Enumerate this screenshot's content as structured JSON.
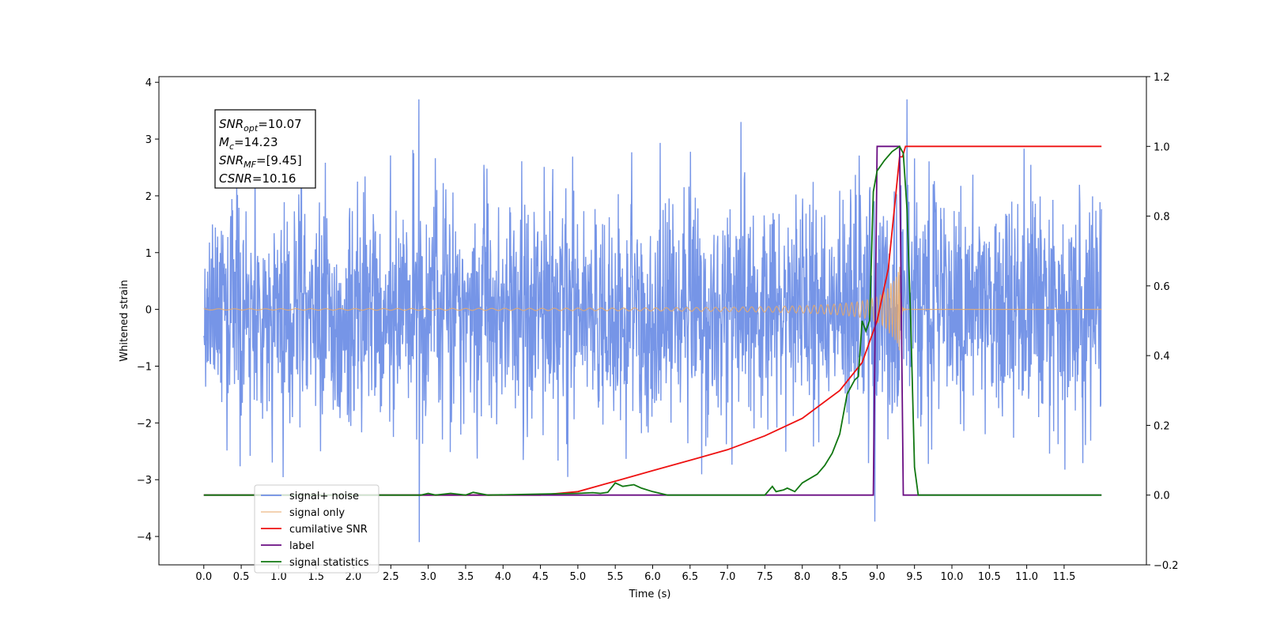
{
  "chart_data": {
    "type": "line",
    "xlabel": "Time (s)",
    "ylabel": "Whitened strain",
    "xlim": [
      -0.6,
      12.6
    ],
    "ylim": [
      -4.5,
      4.1
    ],
    "y2lim": [
      -0.2,
      1.2
    ],
    "x_ticks": [
      "0.0",
      "0.5",
      "1.0",
      "1.5",
      "2.0",
      "2.5",
      "3.0",
      "3.5",
      "4.0",
      "4.5",
      "5.0",
      "5.5",
      "6.0",
      "6.5",
      "7.0",
      "7.5",
      "8.0",
      "8.5",
      "9.0",
      "9.5",
      "10.0",
      "10.5",
      "11.0",
      "11.5"
    ],
    "y_ticks": [
      "4",
      "3",
      "2",
      "1",
      "0",
      "−1",
      "−2",
      "−3",
      "−4"
    ],
    "y2_ticks": [
      "1.2",
      "1.0",
      "0.8",
      "0.6",
      "0.4",
      "0.2",
      "0.0",
      "−0.2"
    ],
    "grid": false,
    "legend_position": "lower-left",
    "annotation": [
      {
        "sym": "SNR",
        "sub": "opt",
        "val": "=10.07"
      },
      {
        "sym": "M",
        "sub": "c",
        "val": "=14.23"
      },
      {
        "sym": "SNR",
        "sub": "MF",
        "val": "=[9.45]"
      },
      {
        "sym": "CSNR",
        "sub": "",
        "val": "=10.16"
      }
    ],
    "series": [
      {
        "name": "signal+ noise",
        "axis": "left",
        "color": "#6f8fe6",
        "description": "white noise, std ~1, spanning 0–12 s, peaks up to ~3.7 and down to ~-4.1"
      },
      {
        "name": "signal only",
        "axis": "left",
        "color": "#e8a96a",
        "chirp": {
          "t_start": 0,
          "t_merge": 9.3,
          "t_end": 12.0,
          "peak_amplitude": 0.75
        }
      },
      {
        "name": "cumilative SNR",
        "axis": "right",
        "color": "#ee1111",
        "x": [
          0.0,
          4.5,
          5.0,
          5.5,
          6.0,
          6.5,
          7.0,
          7.5,
          8.0,
          8.5,
          8.8,
          9.0,
          9.15,
          9.3,
          9.34,
          9.38,
          12.0
        ],
        "y": [
          0.0,
          0.0,
          0.01,
          0.04,
          0.07,
          0.1,
          0.13,
          0.17,
          0.22,
          0.3,
          0.38,
          0.5,
          0.65,
          0.97,
          0.97,
          1.0,
          1.0
        ]
      },
      {
        "name": "label",
        "axis": "right",
        "color": "#6a0d83",
        "x": [
          0.0,
          8.95,
          9.0,
          9.3,
          9.35,
          9.4,
          12.0
        ],
        "y": [
          0.0,
          0.0,
          1.0,
          1.0,
          0.0,
          0.0,
          0.0
        ]
      },
      {
        "name": "signal statistics",
        "axis": "right",
        "color": "#117711",
        "x": [
          0.0,
          2.9,
          3.0,
          3.1,
          3.3,
          3.5,
          3.6,
          3.8,
          4.5,
          5.0,
          5.2,
          5.3,
          5.4,
          5.5,
          5.6,
          5.75,
          5.85,
          6.0,
          6.2,
          7.5,
          7.6,
          7.65,
          7.75,
          7.8,
          7.9,
          8.0,
          8.2,
          8.3,
          8.4,
          8.5,
          8.6,
          8.7,
          8.75,
          8.8,
          8.85,
          8.9,
          8.95,
          9.0,
          9.1,
          9.2,
          9.3,
          9.35,
          9.4,
          9.45,
          9.5,
          9.55,
          9.6,
          12.0
        ],
        "y": [
          0.0,
          0.0,
          0.005,
          0.0,
          0.005,
          0.0,
          0.008,
          0.0,
          0.003,
          0.005,
          0.007,
          0.005,
          0.008,
          0.035,
          0.025,
          0.03,
          0.02,
          0.01,
          0.0,
          0.0,
          0.025,
          0.01,
          0.015,
          0.02,
          0.01,
          0.035,
          0.06,
          0.085,
          0.12,
          0.175,
          0.29,
          0.33,
          0.34,
          0.5,
          0.47,
          0.5,
          0.87,
          0.93,
          0.96,
          0.985,
          1.0,
          0.98,
          0.82,
          0.5,
          0.08,
          0.0,
          0.0,
          0.0
        ]
      }
    ]
  }
}
